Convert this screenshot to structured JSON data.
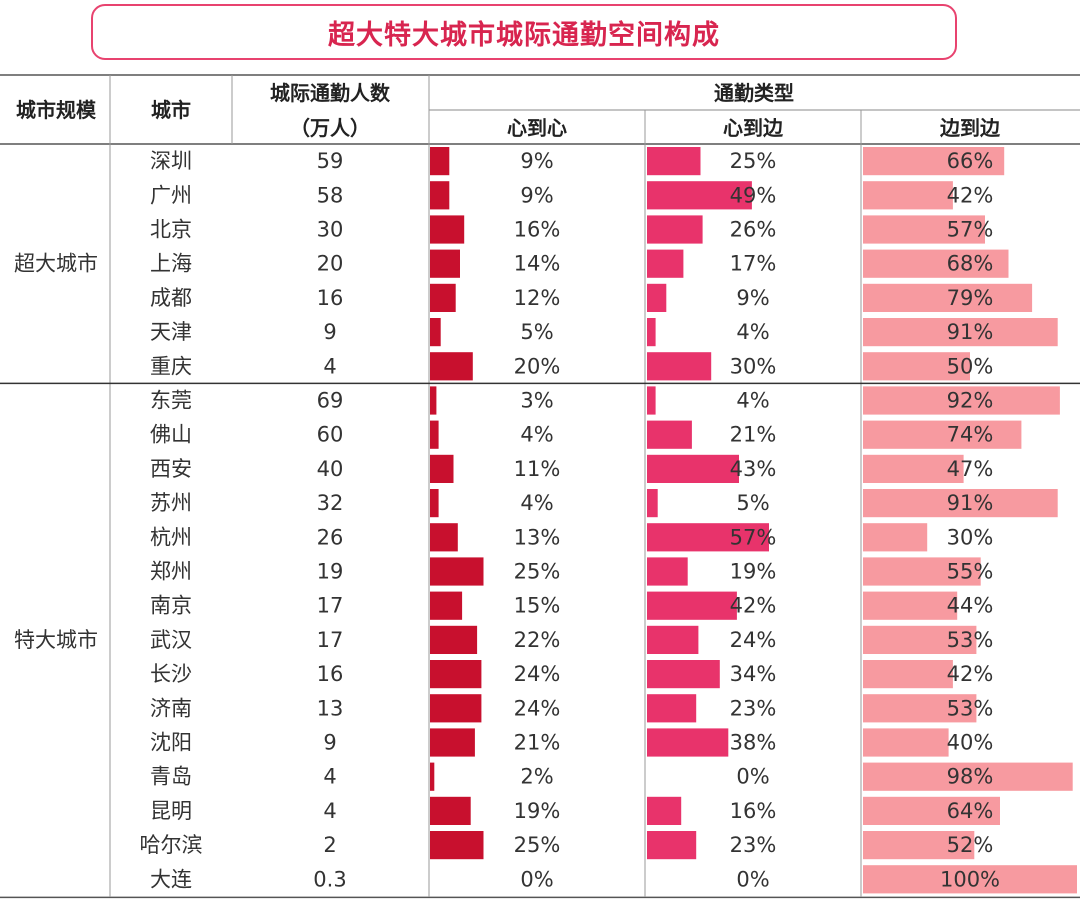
{
  "title": "超大特大城市城际通勤空间构成",
  "headers": {
    "scale": "城市规模",
    "city": "城市",
    "commuters_line1": "城际通勤人数",
    "commuters_line2": "（万人）",
    "type_group": "通勤类型",
    "c2c": "心到心",
    "c2e": "心到边",
    "e2e": "边到边"
  },
  "groups": [
    {
      "label": "超大城市",
      "count": 7
    },
    {
      "label": "特大城市",
      "count": 15
    }
  ],
  "colors": {
    "c2c": "#c8102e",
    "c2e": "#e8336b",
    "e2e": "#f79aa0",
    "title": "#d8254f"
  },
  "chart_data": {
    "type": "table",
    "title": "超大特大城市城际通勤空间构成",
    "columns": [
      "城市规模",
      "城市",
      "城际通勤人数（万人）",
      "心到心",
      "心到边",
      "边到边"
    ],
    "unit_percent": "%",
    "rows": [
      {
        "group": "超大城市",
        "city": "深圳",
        "commuters": "59",
        "c2c": 9,
        "c2e": 25,
        "e2e": 66
      },
      {
        "group": "超大城市",
        "city": "广州",
        "commuters": "58",
        "c2c": 9,
        "c2e": 49,
        "e2e": 42
      },
      {
        "group": "超大城市",
        "city": "北京",
        "commuters": "30",
        "c2c": 16,
        "c2e": 26,
        "e2e": 57
      },
      {
        "group": "超大城市",
        "city": "上海",
        "commuters": "20",
        "c2c": 14,
        "c2e": 17,
        "e2e": 68
      },
      {
        "group": "超大城市",
        "city": "成都",
        "commuters": "16",
        "c2c": 12,
        "c2e": 9,
        "e2e": 79
      },
      {
        "group": "超大城市",
        "city": "天津",
        "commuters": "9",
        "c2c": 5,
        "c2e": 4,
        "e2e": 91
      },
      {
        "group": "超大城市",
        "city": "重庆",
        "commuters": "4",
        "c2c": 20,
        "c2e": 30,
        "e2e": 50
      },
      {
        "group": "特大城市",
        "city": "东莞",
        "commuters": "69",
        "c2c": 3,
        "c2e": 4,
        "e2e": 92
      },
      {
        "group": "特大城市",
        "city": "佛山",
        "commuters": "60",
        "c2c": 4,
        "c2e": 21,
        "e2e": 74
      },
      {
        "group": "特大城市",
        "city": "西安",
        "commuters": "40",
        "c2c": 11,
        "c2e": 43,
        "e2e": 47
      },
      {
        "group": "特大城市",
        "city": "苏州",
        "commuters": "32",
        "c2c": 4,
        "c2e": 5,
        "e2e": 91
      },
      {
        "group": "特大城市",
        "city": "杭州",
        "commuters": "26",
        "c2c": 13,
        "c2e": 57,
        "e2e": 30
      },
      {
        "group": "特大城市",
        "city": "郑州",
        "commuters": "19",
        "c2c": 25,
        "c2e": 19,
        "e2e": 55
      },
      {
        "group": "特大城市",
        "city": "南京",
        "commuters": "17",
        "c2c": 15,
        "c2e": 42,
        "e2e": 44
      },
      {
        "group": "特大城市",
        "city": "武汉",
        "commuters": "17",
        "c2c": 22,
        "c2e": 24,
        "e2e": 53
      },
      {
        "group": "特大城市",
        "city": "长沙",
        "commuters": "16",
        "c2c": 24,
        "c2e": 34,
        "e2e": 42
      },
      {
        "group": "特大城市",
        "city": "济南",
        "commuters": "13",
        "c2c": 24,
        "c2e": 23,
        "e2e": 53
      },
      {
        "group": "特大城市",
        "city": "沈阳",
        "commuters": "9",
        "c2c": 21,
        "c2e": 38,
        "e2e": 40
      },
      {
        "group": "特大城市",
        "city": "青岛",
        "commuters": "4",
        "c2c": 2,
        "c2e": 0,
        "e2e": 98
      },
      {
        "group": "特大城市",
        "city": "昆明",
        "commuters": "4",
        "c2c": 19,
        "c2e": 16,
        "e2e": 64
      },
      {
        "group": "特大城市",
        "city": "哈尔滨",
        "commuters": "2",
        "c2c": 25,
        "c2e": 23,
        "e2e": 52
      },
      {
        "group": "特大城市",
        "city": "大连",
        "commuters": "0.3",
        "c2c": 0,
        "c2e": 0,
        "e2e": 100
      }
    ]
  }
}
